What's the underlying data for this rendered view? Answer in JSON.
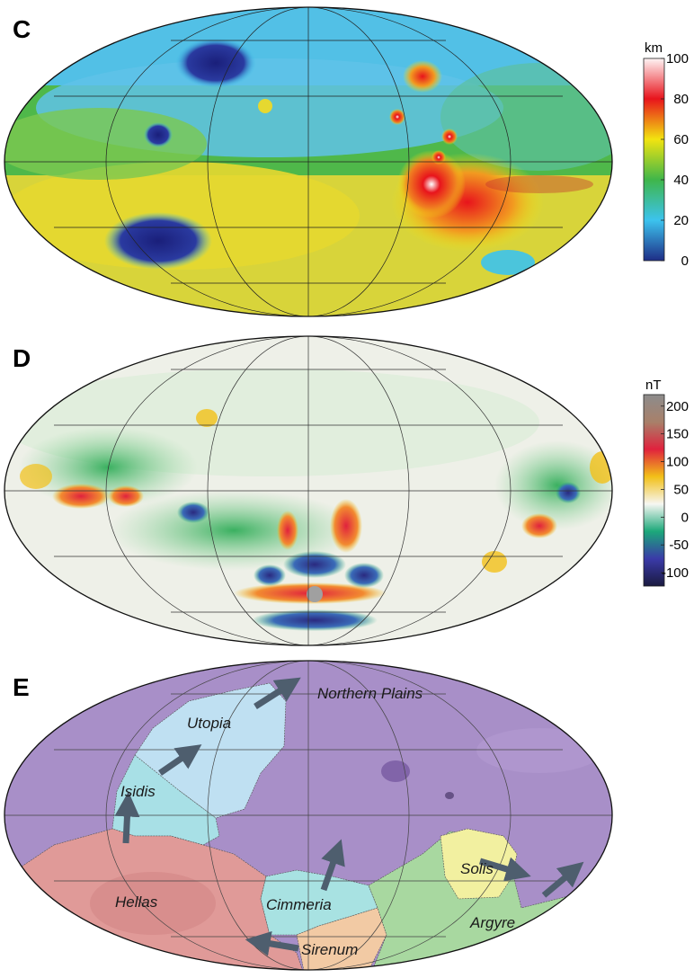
{
  "panels": [
    {
      "letter": "C",
      "colorbar": {
        "unit": "km",
        "ticks": [
          "100",
          "80",
          "60",
          "40",
          "20",
          "0"
        ],
        "colors": [
          "#fff5f5",
          "#e8141c",
          "#f2e410",
          "#3fb64a",
          "#3cc3ee",
          "#1e2d86"
        ]
      }
    },
    {
      "letter": "D",
      "colorbar": {
        "unit": "nT",
        "ticks": [
          "200",
          "150",
          "100",
          "50",
          "0",
          "-50",
          "-100"
        ],
        "colors": [
          "#8c8c8c",
          "#a8806a",
          "#e0223d",
          "#f2c018",
          "#f6f6f2",
          "#1ca87a",
          "#3a3aa8",
          "#1a1a40"
        ]
      }
    },
    {
      "letter": "E",
      "regions": [
        {
          "name": "Northern Plains"
        },
        {
          "name": "Utopia"
        },
        {
          "name": "Isidis"
        },
        {
          "name": "Hellas"
        },
        {
          "name": "Cimmeria"
        },
        {
          "name": "Sirenum"
        },
        {
          "name": "Solis"
        },
        {
          "name": "Argyre"
        }
      ],
      "colors": {
        "northern": "#a88fc8",
        "utopia": "#bfe0f2",
        "isidis": "#a8e0e6",
        "hellas": "#e09a98",
        "cimmeria": "#a8e2e2",
        "sirenum": "#f2caa4",
        "solis": "#f2f0a0",
        "argyre": "#a8d8a0",
        "arrow": "#4e5e6e"
      }
    }
  ]
}
